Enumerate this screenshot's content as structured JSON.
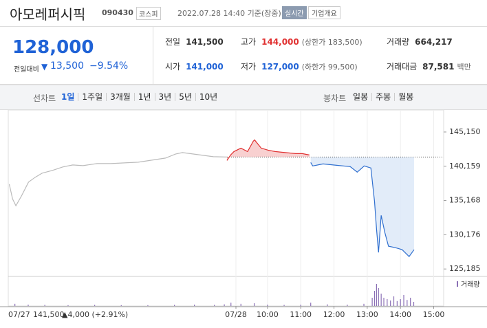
{
  "header": {
    "name": "아모레퍼시픽",
    "code": "090430",
    "market": "코스피",
    "time": "2022.07.28 14:40 기준(장중)",
    "realtime": "실시간",
    "overview": "기업개요"
  },
  "quote": {
    "price": "128,000",
    "change_label": "전일대비",
    "change": "13,500",
    "rate": "−9.54%"
  },
  "stats": [
    {
      "label": "전일",
      "value": "141,500"
    },
    {
      "label": "고가",
      "value": "144,000",
      "note": "(상한가 183,500)"
    },
    {
      "label": "거래량",
      "value": "664,217"
    },
    {
      "label": "시가",
      "value": "141,000"
    },
    {
      "label": "저가",
      "value": "127,000",
      "note": "(하한가 99,500)"
    },
    {
      "label": "거래대금",
      "value": "87,581",
      "note": "백만"
    }
  ],
  "tabs": {
    "line_label": "선차트",
    "line": [
      "1일",
      "1주일",
      "3개월",
      "1년",
      "3년",
      "5년",
      "10년"
    ],
    "candle_label": "봉차트",
    "candle": [
      "일봉",
      "주봉",
      "월봉"
    ]
  },
  "chart_data": {
    "type": "line",
    "xlim": [
      2.2,
      15.3
    ],
    "xticks": [
      {
        "value": 9.05,
        "label": "07/28"
      },
      {
        "value": 10,
        "label": "10:00"
      },
      {
        "value": 11,
        "label": "11:00"
      },
      {
        "value": 12,
        "label": "12:00"
      },
      {
        "value": 13,
        "label": "13:00"
      },
      {
        "value": 14,
        "label": "14:00"
      },
      {
        "value": 15,
        "label": "15:00"
      }
    ],
    "ylim": [
      124300,
      146850
    ],
    "yticks": [
      {
        "value": 145150,
        "label": "145,150"
      },
      {
        "value": 140159,
        "label": "140,159"
      },
      {
        "value": 135168,
        "label": "135,168"
      },
      {
        "value": 130176,
        "label": "130,176"
      },
      {
        "value": 125185,
        "label": "125,185"
      }
    ],
    "grid": "vertical",
    "baseline": 141500,
    "series": [
      {
        "color": "#bbbbbb",
        "fill": null,
        "x": [
          2.23,
          2.33,
          2.43,
          2.6,
          2.81,
          3.01,
          3.22,
          3.53,
          3.84,
          4.14,
          4.45,
          4.87,
          5.28,
          5.69,
          6.11,
          6.52,
          6.93,
          7.24,
          7.44,
          7.75,
          8.06,
          8.37,
          8.78
        ],
        "values": [
          137550,
          135400,
          134400,
          135850,
          137850,
          138550,
          139150,
          139550,
          140050,
          140350,
          140250,
          140550,
          140550,
          140650,
          140750,
          141050,
          141350,
          141950,
          142150,
          141950,
          141750,
          141550,
          141500
        ]
      },
      {
        "color": "#e03030",
        "fill": "#f7c8c8",
        "x": [
          8.78,
          8.89,
          8.99,
          9.2,
          9.4,
          9.57,
          9.61,
          9.81,
          10.02,
          10.23,
          10.43,
          10.64,
          10.85,
          11.05,
          11.26
        ],
        "values": [
          141000,
          141800,
          142300,
          142800,
          142300,
          143800,
          144000,
          142800,
          142500,
          142300,
          142200,
          142100,
          142000,
          142000,
          141800
        ]
      },
      {
        "color": "#2f6fcf",
        "fill": "#dde9f8",
        "x": [
          11.3,
          11.36,
          11.67,
          12.08,
          12.49,
          12.7,
          12.91,
          13.11,
          13.22,
          13.28,
          13.34,
          13.42,
          13.53,
          13.64,
          13.84,
          14.05,
          14.26,
          14.41
        ],
        "values": [
          140700,
          140200,
          140500,
          140300,
          140100,
          139300,
          140200,
          139900,
          135000,
          131000,
          127600,
          133000,
          130500,
          128500,
          128300,
          128000,
          127000,
          128000
        ]
      }
    ],
    "volume": {
      "label": "거래량",
      "color": "#8a6fb5",
      "vlim": [
        0,
        100
      ],
      "x": [
        2.4,
        2.8,
        3.3,
        4.0,
        4.8,
        5.6,
        6.4,
        7.2,
        7.8,
        8.4,
        8.7,
        8.9,
        9.2,
        9.6,
        10.0,
        10.5,
        11.0,
        11.3,
        11.8,
        12.4,
        12.9,
        13.15,
        13.22,
        13.28,
        13.34,
        13.42,
        13.5,
        13.6,
        13.7,
        13.8,
        13.9,
        14.0,
        14.1,
        14.2,
        14.3,
        14.4
      ],
      "values": [
        8,
        5,
        4,
        3,
        4,
        3,
        3,
        4,
        5,
        4,
        6,
        12,
        8,
        10,
        5,
        4,
        5,
        12,
        6,
        5,
        8,
        30,
        55,
        80,
        65,
        45,
        30,
        25,
        20,
        35,
        18,
        25,
        40,
        22,
        30,
        15
      ]
    },
    "prev_date": "07/27",
    "prev_close": "141,500",
    "prev_change": "▲4,000 (+2.91%)"
  }
}
